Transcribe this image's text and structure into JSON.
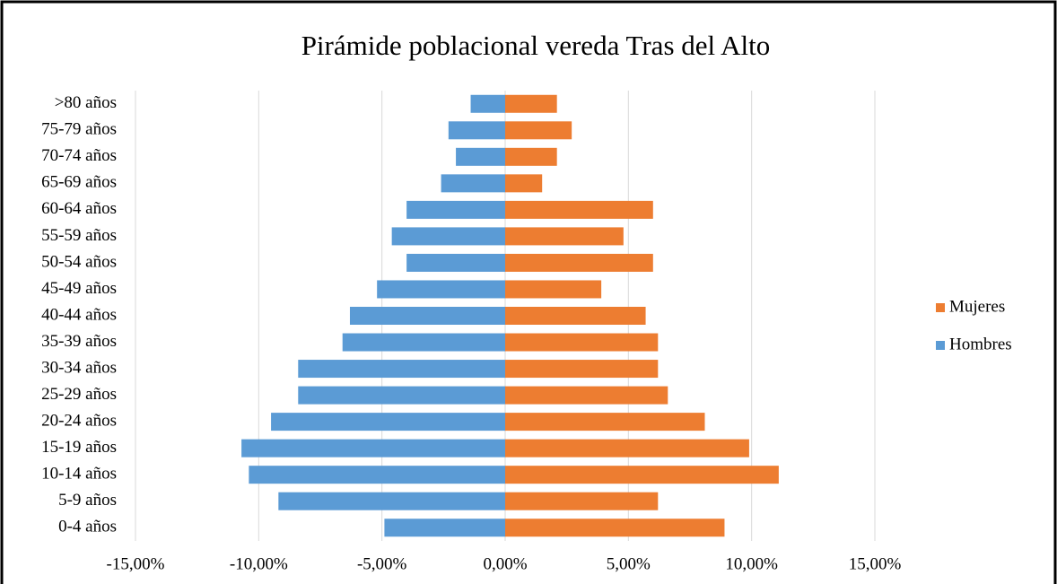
{
  "chart_data": {
    "type": "bar",
    "orientation": "horizontal",
    "stacked": false,
    "title": "Pirámide poblacional vereda Tras del Alto",
    "categories": [
      "0-4 años",
      "5-9 años",
      "10-14 años",
      "15-19 años",
      "20-24 años",
      "25-29 años",
      "30-34 años",
      "35-39 años",
      "40-44 años",
      "45-49 años",
      "50-54 años",
      "55-59 años",
      "60-64 años",
      "65-69 años",
      "70-74 años",
      "75-79 años",
      ">80 años"
    ],
    "series": [
      {
        "name": "Mujeres",
        "color": "#ed7d31",
        "values": [
          8.9,
          6.2,
          11.1,
          9.9,
          8.1,
          6.6,
          6.2,
          6.2,
          5.7,
          3.9,
          6.0,
          4.8,
          6.0,
          1.5,
          2.1,
          2.7,
          2.1
        ]
      },
      {
        "name": "Hombres",
        "color": "#5b9bd5",
        "values": [
          -4.9,
          -9.2,
          -10.4,
          -10.7,
          -9.5,
          -8.4,
          -8.4,
          -6.6,
          -6.3,
          -5.2,
          -4.0,
          -4.6,
          -4.0,
          -2.6,
          -2.0,
          -2.3,
          -1.4
        ]
      }
    ],
    "xlim": [
      -15,
      15
    ],
    "xticks": [
      {
        "value": -15,
        "label": "-15,00%"
      },
      {
        "value": -10,
        "label": "-10,00%"
      },
      {
        "value": -5,
        "label": "-5,00%"
      },
      {
        "value": 0,
        "label": "0,00%"
      },
      {
        "value": 5,
        "label": "5,00%"
      },
      {
        "value": 10,
        "label": "10,00%"
      },
      {
        "value": 15,
        "label": "15,00%"
      }
    ],
    "grid": true,
    "legend": "right"
  }
}
